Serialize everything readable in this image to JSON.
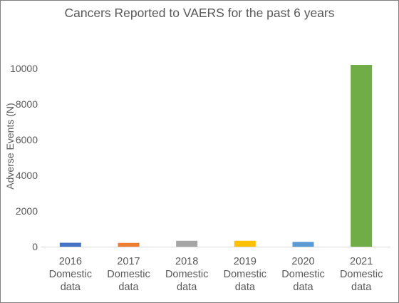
{
  "chart_data": {
    "type": "bar",
    "title": "Cancers Reported to VAERS for the past 6 years",
    "xlabel": "",
    "ylabel": "Adverse Events (N)",
    "ylim": [
      0,
      12000
    ],
    "yticks": [
      0,
      2000,
      4000,
      6000,
      8000,
      10000
    ],
    "categories": [
      [
        "2016",
        "Domestic",
        "data"
      ],
      [
        "2017",
        "Domestic",
        "data"
      ],
      [
        "2018",
        "Domestic",
        "data"
      ],
      [
        "2019",
        "Domestic",
        "data"
      ],
      [
        "2020",
        "Domestic",
        "data"
      ],
      [
        "2021",
        "Domestic",
        "data"
      ]
    ],
    "values": [
      220,
      210,
      330,
      330,
      270,
      10200
    ],
    "colors": [
      "#4472c4",
      "#ed7d31",
      "#a5a5a5",
      "#ffc000",
      "#5b9bd5",
      "#70ad47"
    ],
    "grid": false,
    "legend": "none"
  }
}
